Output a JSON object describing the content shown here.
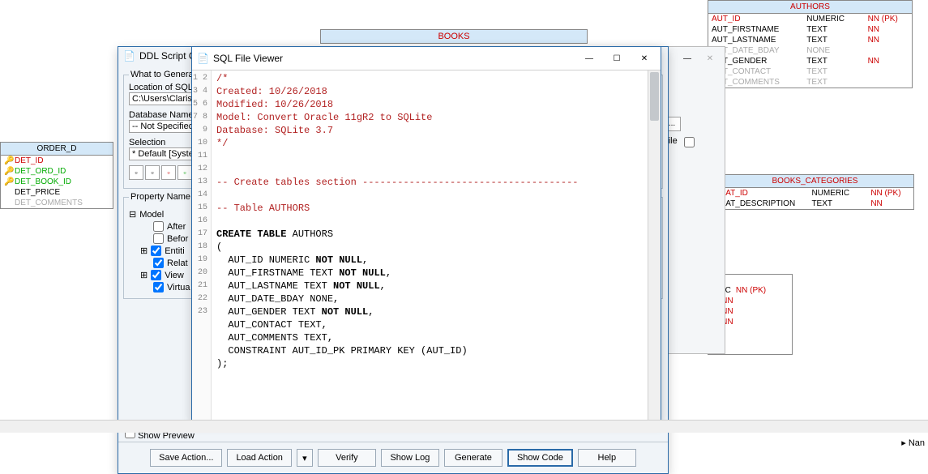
{
  "canvas": {
    "books_title": "BOOKS",
    "authors": {
      "title": "AUTHORS",
      "rows": [
        {
          "name": "AUT_ID",
          "type": "NUMERIC",
          "flags": "NN  (PK)",
          "red": true
        },
        {
          "name": "AUT_FIRSTNAME",
          "type": "TEXT",
          "flags": "NN"
        },
        {
          "name": "AUT_LASTNAME",
          "type": "TEXT",
          "flags": "NN"
        },
        {
          "name": "AUT_DATE_BDAY",
          "type": "NONE",
          "flags": "",
          "faded": true
        },
        {
          "name": "AUT_GENDER",
          "type": "TEXT",
          "flags": "NN"
        },
        {
          "name": "AUT_CONTACT",
          "type": "TEXT",
          "flags": "",
          "faded": true
        },
        {
          "name": "AUT_COMMENTS",
          "type": "TEXT",
          "flags": "",
          "faded": true
        }
      ]
    },
    "books_categories": {
      "title": "BOOKS_CATEGORIES",
      "rows": [
        {
          "name": "CAT_ID",
          "type": "NUMERIC",
          "flags": "NN  (PK)",
          "red": true
        },
        {
          "name": "CAT_DESCRIPTION",
          "type": "TEXT",
          "flags": "NN"
        }
      ]
    },
    "order_d": {
      "title": "ORDER_D",
      "rows": [
        {
          "name": "DET_ID",
          "color": "#c00",
          "key": "🔑"
        },
        {
          "name": "DET_ORD_ID",
          "color": "#0a0",
          "key": "🔑"
        },
        {
          "name": "DET_BOOK_ID",
          "color": "#0a0",
          "key": "🔑"
        },
        {
          "name": "DET_PRICE",
          "color": "#000",
          "key": ""
        },
        {
          "name": "DET_COMMENTS",
          "color": "#aaa",
          "key": ""
        }
      ]
    },
    "partial": {
      "rows": [
        {
          "c1": "S",
          "c2": ""
        },
        {
          "c1": "ERIC",
          "c2": "NN  (PK)"
        },
        {
          "c1": "T",
          "c2": "NN"
        },
        {
          "c1": "T",
          "c2": "NN"
        },
        {
          "c1": "T",
          "c2": "NN"
        }
      ]
    }
  },
  "ddl": {
    "title": "DDL Script G",
    "what_label": "What to Generate",
    "loc_label": "Location of SQL",
    "loc_value": "C:\\Users\\Clarisa",
    "dbname_label": "Database Name",
    "dbname_value": "-- Not Specified",
    "selection_label": "Selection",
    "selection_value": "* Default [Syste",
    "prop_header": "Property Name",
    "tree": {
      "root": "Model",
      "items": [
        {
          "label": "After",
          "checked": false
        },
        {
          "label": "Befor",
          "checked": false
        },
        {
          "label": "Entiti",
          "checked": true,
          "expand": "+"
        },
        {
          "label": "Relat",
          "checked": true
        },
        {
          "label": "View",
          "checked": true,
          "expand": "+"
        },
        {
          "label": "Virtua",
          "checked": true
        }
      ]
    },
    "show_preview": "Show Preview",
    "buttons": {
      "save": "Save Action...",
      "load": "Load Action",
      "verify": "Verify",
      "showlog": "Show Log",
      "generate": "Generate",
      "showcode": "Show Code",
      "help": "Help"
    }
  },
  "sql": {
    "title": "SQL File Viewer",
    "lines": [
      {
        "n": 1,
        "t": "/*",
        "cls": "c-red"
      },
      {
        "n": 2,
        "t": "Created: 10/26/2018",
        "cls": "c-red"
      },
      {
        "n": 3,
        "t": "Modified: 10/26/2018",
        "cls": "c-red"
      },
      {
        "n": 4,
        "t": "Model: Convert Oracle 11gR2 to SQLite",
        "cls": "c-red"
      },
      {
        "n": 5,
        "t": "Database: SQLite 3.7",
        "cls": "c-red"
      },
      {
        "n": 6,
        "t": "*/",
        "cls": "c-red"
      },
      {
        "n": 7,
        "t": "",
        "cls": ""
      },
      {
        "n": 8,
        "t": "",
        "cls": ""
      },
      {
        "n": 9,
        "t": "-- Create tables section -------------------------------------",
        "cls": "c-red"
      },
      {
        "n": 10,
        "t": "",
        "cls": ""
      },
      {
        "n": 11,
        "t": "-- Table AUTHORS",
        "cls": "c-red"
      },
      {
        "n": 12,
        "t": "",
        "cls": ""
      }
    ],
    "code_lines": [
      {
        "n": 13,
        "pre": "",
        "kw": "CREATE TABLE",
        "post": " AUTHORS"
      },
      {
        "n": 14,
        "pre": "(",
        "kw": "",
        "post": ""
      },
      {
        "n": 15,
        "pre": "  AUT_ID NUMERIC ",
        "kw": "NOT NULL",
        "post": ","
      },
      {
        "n": 16,
        "pre": "  AUT_FIRSTNAME TEXT ",
        "kw": "NOT NULL",
        "post": ","
      },
      {
        "n": 17,
        "pre": "  AUT_LASTNAME TEXT ",
        "kw": "NOT NULL",
        "post": ","
      },
      {
        "n": 18,
        "pre": "  AUT_DATE_BDAY NONE,",
        "kw": "",
        "post": ""
      },
      {
        "n": 19,
        "pre": "  AUT_GENDER TEXT ",
        "kw": "NOT NULL",
        "post": ","
      },
      {
        "n": 20,
        "pre": "  AUT_CONTACT TEXT,",
        "kw": "",
        "post": ""
      },
      {
        "n": 21,
        "pre": "  AUT_COMMENTS TEXT,",
        "kw": "",
        "post": ""
      },
      {
        "n": 22,
        "pre": "  CONSTRAINT AUT_ID_PK PRIMARY KEY (AUT_ID)",
        "kw": "",
        "post": ""
      },
      {
        "n": 23,
        "pre": ");",
        "kw": "",
        "post": ""
      }
    ]
  },
  "bg": {
    "file_label": "File",
    "ellipsis": "..."
  },
  "bottom_label": "Nan"
}
